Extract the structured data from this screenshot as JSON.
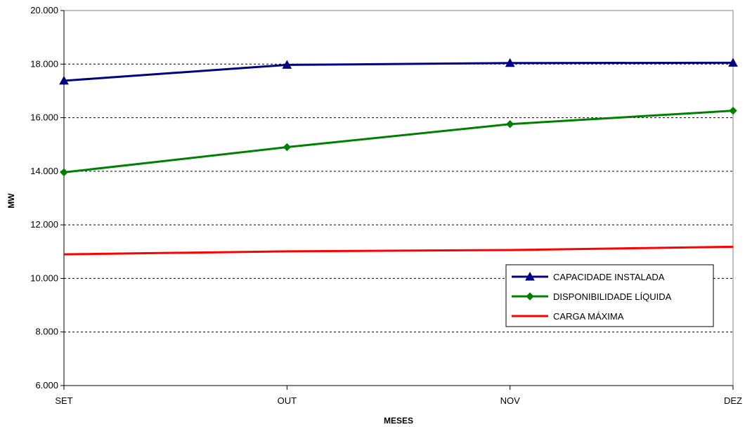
{
  "chart_data": {
    "type": "line",
    "categories": [
      "SET",
      "OUT",
      "NOV",
      "DEZ"
    ],
    "xlabel": "MESES",
    "ylabel": "MW",
    "ylim": [
      6000,
      20000
    ],
    "yticks": [
      {
        "value": 6000,
        "label": "6.000"
      },
      {
        "value": 8000,
        "label": "8.000"
      },
      {
        "value": 10000,
        "label": "10.000"
      },
      {
        "value": 12000,
        "label": "12.000"
      },
      {
        "value": 14000,
        "label": "14.000"
      },
      {
        "value": 16000,
        "label": "16.000"
      },
      {
        "value": 18000,
        "label": "18.000"
      },
      {
        "value": 20000,
        "label": "20.000"
      }
    ],
    "grid": "horizontal dashed",
    "legend_position": "bottom-right",
    "series": [
      {
        "name": "CAPACIDADE INSTALADA",
        "values": [
          17380,
          17970,
          18040,
          18050
        ],
        "color": "#000080",
        "marker": "triangle"
      },
      {
        "name": "DISPONIBILIDADE LÍQUIDA",
        "values": [
          13960,
          14900,
          15760,
          16260
        ],
        "color": "#008000",
        "marker": "diamond"
      },
      {
        "name": "CARGA MÁXIMA",
        "values": [
          10900,
          11010,
          11060,
          11180
        ],
        "color": "#ff0000",
        "marker": "none"
      }
    ]
  }
}
